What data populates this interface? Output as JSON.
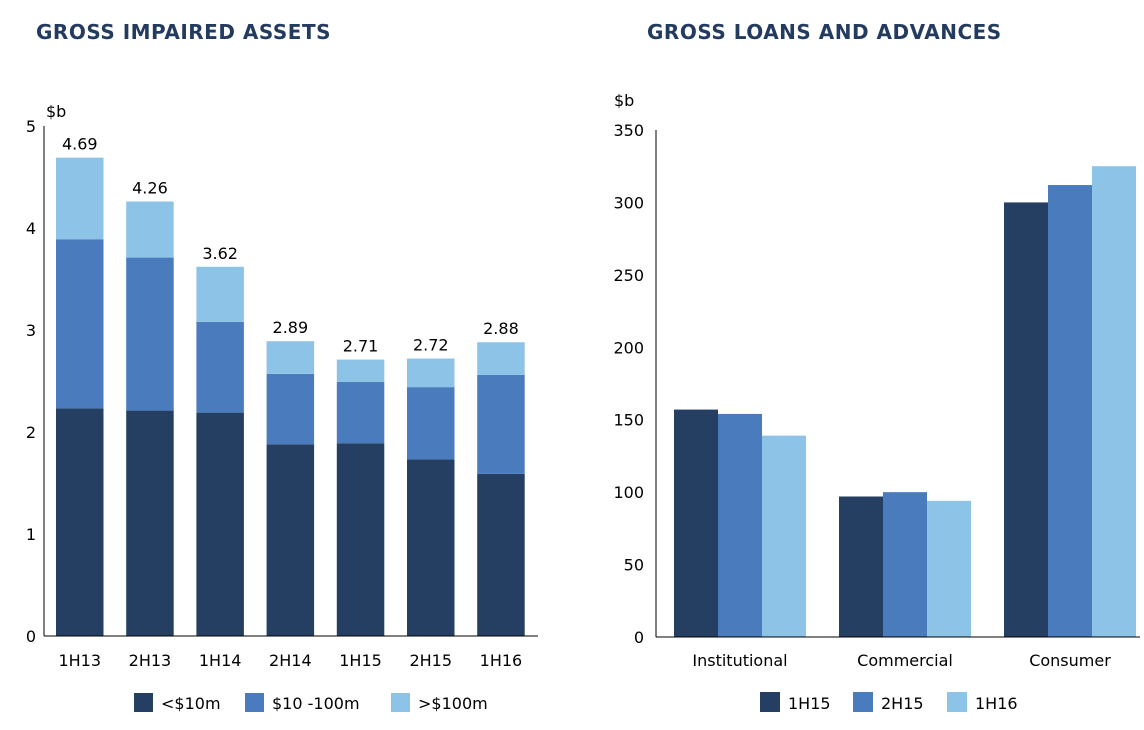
{
  "chart_data": [
    {
      "type": "bar",
      "stacked": true,
      "title": "GROSS IMPAIRED ASSETS",
      "ylabel": "$b",
      "ylim": [
        0,
        5
      ],
      "yticks": [
        0,
        1,
        2,
        3,
        4,
        5
      ],
      "categories": [
        "1H13",
        "2H13",
        "1H14",
        "2H14",
        "1H15",
        "2H15",
        "1H16"
      ],
      "series": [
        {
          "name": "<$10m",
          "color": "#243f62",
          "values": [
            2.23,
            2.21,
            2.19,
            1.88,
            1.89,
            1.73,
            1.59
          ]
        },
        {
          "name": "$10 -100m",
          "color": "#4a7bbd",
          "values": [
            1.66,
            1.5,
            0.89,
            0.69,
            0.6,
            0.71,
            0.97
          ]
        },
        {
          "name": ">$100m",
          "color": "#8ec3e8",
          "values": [
            0.8,
            0.55,
            0.54,
            0.32,
            0.22,
            0.28,
            0.32
          ]
        }
      ],
      "totals": [
        "4.69",
        "4.26",
        "3.62",
        "2.89",
        "2.71",
        "2.72",
        "2.88"
      ],
      "grid": false,
      "legend": "bottom"
    },
    {
      "type": "bar",
      "stacked": false,
      "title": "GROSS LOANS AND ADVANCES",
      "ylabel": "$b",
      "ylim": [
        0,
        350
      ],
      "yticks": [
        0,
        50,
        100,
        150,
        200,
        250,
        300,
        350
      ],
      "categories": [
        "Institutional",
        "Commercial",
        "Consumer"
      ],
      "series": [
        {
          "name": "1H15",
          "color": "#243f62",
          "values": [
            157,
            97,
            300
          ]
        },
        {
          "name": "2H15",
          "color": "#4a7bbd",
          "values": [
            154,
            100,
            312
          ]
        },
        {
          "name": "1H16",
          "color": "#8ec3e8",
          "values": [
            139,
            94,
            325
          ]
        }
      ],
      "grid": false,
      "legend": "bottom"
    }
  ]
}
